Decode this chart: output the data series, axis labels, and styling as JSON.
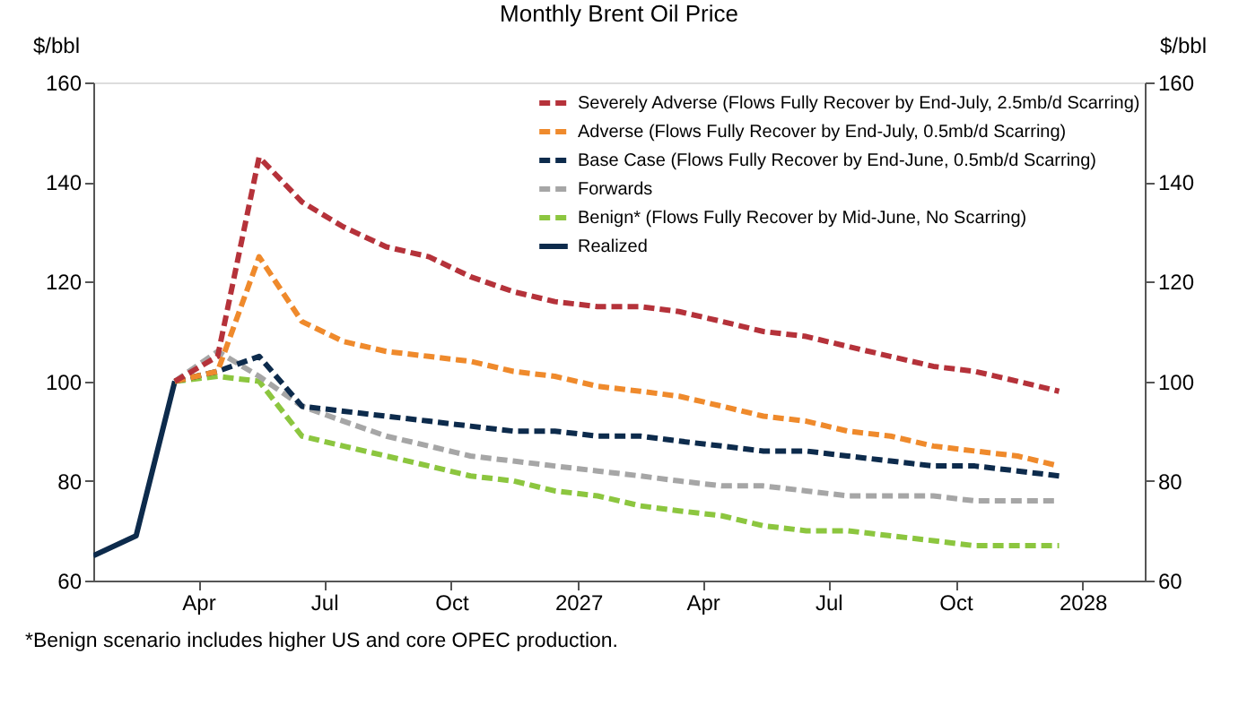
{
  "chart_data": {
    "type": "line",
    "title": "Monthly Brent Oil Price",
    "ylabel": "$/bbl",
    "y2label": "$/bbl",
    "x": [
      "2026-03-15",
      "2026-04-15",
      "2026-05-15",
      "2026-06-15",
      "2026-07-15",
      "2026-08-15",
      "2026-09-15",
      "2026-10-15",
      "2026-11-15",
      "2026-12-15",
      "2027-01-15",
      "2027-02-15",
      "2027-03-15",
      "2027-04-15",
      "2027-05-15",
      "2027-06-15",
      "2027-07-15",
      "2027-08-15",
      "2027-09-15",
      "2027-10-15",
      "2027-11-15",
      "2027-12-15"
    ],
    "series": [
      {
        "name": "Severely Adverse (Flows Fully Recover by End-July, 2.5mb/d Scarring)",
        "color": "#b5323a",
        "line_style": "dashed",
        "values": [
          100,
          105,
          145,
          136,
          131,
          127,
          125,
          121,
          118,
          116,
          115,
          115,
          114,
          112,
          110,
          109,
          107,
          105,
          103,
          102,
          100,
          98
        ]
      },
      {
        "name": "Adverse (Flows Fully Recover by End-July, 0.5mb/d Scarring)",
        "color": "#ef8a2c",
        "line_style": "dashed",
        "values": [
          100,
          102,
          125,
          112,
          108,
          106,
          105,
          104,
          102,
          101,
          99,
          98,
          97,
          95,
          93,
          92,
          90,
          89,
          87,
          86,
          85,
          83
        ]
      },
      {
        "name": "Base Case (Flows Fully Recover by End-June, 0.5mb/d Scarring)",
        "color": "#0d2b4c",
        "line_style": "dashed",
        "values": [
          100,
          102,
          105,
          95,
          94,
          93,
          92,
          91,
          90,
          90,
          89,
          89,
          88,
          87,
          86,
          86,
          85,
          84,
          83,
          83,
          82,
          81
        ]
      },
      {
        "name": "Forwards",
        "color": "#a6a6a6",
        "line_style": "dashed",
        "values": [
          100,
          106,
          101,
          95,
          92,
          89,
          87,
          85,
          84,
          83,
          82,
          81,
          80,
          79,
          79,
          78,
          77,
          77,
          77,
          76,
          76,
          76
        ]
      },
      {
        "name": "Benign* (Flows Fully Recover by Mid-June, No Scarring)",
        "color": "#8cc63f",
        "line_style": "dashed",
        "values": [
          100,
          101,
          100,
          89,
          87,
          85,
          83,
          81,
          80,
          78,
          77,
          75,
          74,
          73,
          71,
          70,
          70,
          69,
          68,
          67,
          67,
          67
        ]
      },
      {
        "name": "Realized",
        "color": "#0d2b4c",
        "line_style": "solid",
        "x": [
          "2026-01-15",
          "2026-02-15",
          "2026-03-15"
        ],
        "values": [
          65,
          69,
          100
        ]
      }
    ],
    "xlim": [
      "2026-01-15",
      "2028-02-15"
    ],
    "xticks": [
      {
        "value": "2026-04-01",
        "label": "Apr"
      },
      {
        "value": "2026-07-01",
        "label": "Jul"
      },
      {
        "value": "2026-10-01",
        "label": "Oct"
      },
      {
        "value": "2027-01-01",
        "label": "2027"
      },
      {
        "value": "2027-04-01",
        "label": "Apr"
      },
      {
        "value": "2027-07-01",
        "label": "Jul"
      },
      {
        "value": "2027-10-01",
        "label": "Oct"
      },
      {
        "value": "2028-01-01",
        "label": "2028"
      }
    ],
    "ylim": [
      60,
      160
    ],
    "yticks": [
      60,
      80,
      100,
      120,
      140,
      160
    ],
    "y2lim": [
      60,
      160
    ],
    "y2ticks": [
      60,
      80,
      100,
      120,
      140,
      160
    ],
    "grid": false,
    "legend": "top right",
    "annotations": [
      "*Benign scenario includes higher US and core OPEC production."
    ]
  }
}
